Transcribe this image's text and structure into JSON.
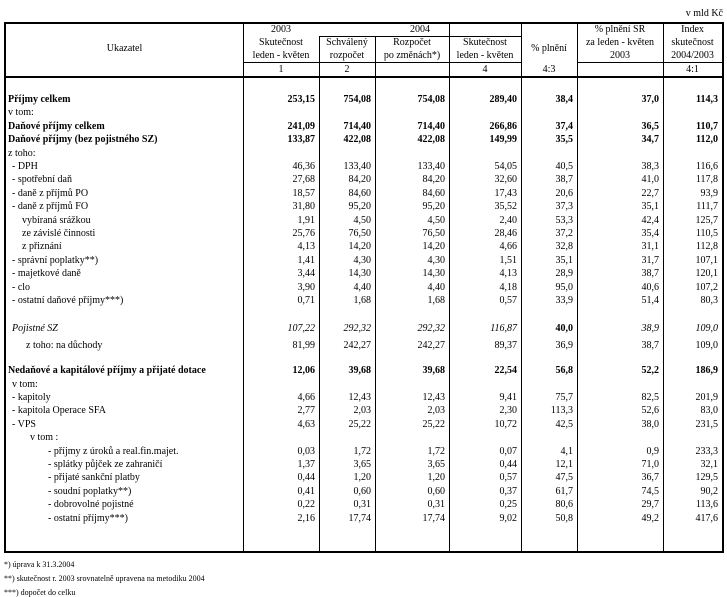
{
  "unit": "v mld Kč",
  "header": {
    "ukazatel": "Ukazatel",
    "year_2003": "2003",
    "year_2004": "2004",
    "col1": [
      "Skutečnost",
      "leden - květen"
    ],
    "col2": [
      "Schválený",
      "rozpočet"
    ],
    "col3": [
      "Rozpočet",
      "po změnách*)"
    ],
    "col4": [
      "Skutečnost",
      "leden - květen"
    ],
    "col5": "% plnění",
    "col6": [
      "% plnění SR",
      "za leden - květen",
      "2003"
    ],
    "col7": [
      "Index",
      "skutečnost",
      "2004/2003"
    ],
    "numbers": [
      "1",
      "2",
      "",
      "4",
      "4:3",
      "",
      "4:1"
    ]
  },
  "rows": [
    {
      "label": "Příjmy celkem",
      "values": [
        "253,15",
        "754,08",
        "754,08",
        "289,40",
        "38,4",
        "37,0",
        "114,3"
      ],
      "style": "bold",
      "level": 0
    },
    {
      "label": "v tom:",
      "values": [
        "",
        "",
        "",
        "",
        "",
        "",
        ""
      ],
      "style": "normal",
      "level": 0
    },
    {
      "label": "Daňové příjmy celkem",
      "values": [
        "241,09",
        "714,40",
        "714,40",
        "266,86",
        "37,4",
        "36,5",
        "110,7"
      ],
      "style": "bold",
      "level": 0
    },
    {
      "label": "Daňové příjmy (bez pojistného SZ)",
      "values": [
        "133,87",
        "422,08",
        "422,08",
        "149,99",
        "35,5",
        "34,7",
        "112,0"
      ],
      "style": "bold",
      "level": 0
    },
    {
      "label": "z toho:",
      "values": [
        "",
        "",
        "",
        "",
        "",
        "",
        ""
      ],
      "style": "normal",
      "level": 0
    },
    {
      "label": "- DPH",
      "values": [
        "46,36",
        "133,40",
        "133,40",
        "54,05",
        "40,5",
        "38,3",
        "116,6"
      ],
      "style": "normal",
      "level": 1
    },
    {
      "label": "- spotřební daň",
      "values": [
        "27,68",
        "84,20",
        "84,20",
        "32,60",
        "38,7",
        "41,0",
        "117,8"
      ],
      "style": "normal",
      "level": 1
    },
    {
      "label": "- daně z příjmů PO",
      "values": [
        "18,57",
        "84,60",
        "84,60",
        "17,43",
        "20,6",
        "22,7",
        "93,9"
      ],
      "style": "normal",
      "level": 1
    },
    {
      "label": "- daně z příjmů FO",
      "values": [
        "31,80",
        "95,20",
        "95,20",
        "35,52",
        "37,3",
        "35,1",
        "111,7"
      ],
      "style": "normal",
      "level": 1
    },
    {
      "label": "vybíraná srážkou",
      "values": [
        "1,91",
        "4,50",
        "4,50",
        "2,40",
        "53,3",
        "42,4",
        "125,7"
      ],
      "style": "normal",
      "level": 2
    },
    {
      "label": "ze závislé činnosti",
      "values": [
        "25,76",
        "76,50",
        "76,50",
        "28,46",
        "37,2",
        "35,4",
        "110,5"
      ],
      "style": "normal",
      "level": 2
    },
    {
      "label": "z přiznání",
      "values": [
        "4,13",
        "14,20",
        "14,20",
        "4,66",
        "32,8",
        "31,1",
        "112,8"
      ],
      "style": "normal",
      "level": 2
    },
    {
      "label": "- správní poplatky**)",
      "values": [
        "1,41",
        "4,30",
        "4,30",
        "1,51",
        "35,1",
        "31,7",
        "107,1"
      ],
      "style": "normal",
      "level": 1
    },
    {
      "label": "- majetkové daně",
      "values": [
        "3,44",
        "14,30",
        "14,30",
        "4,13",
        "28,9",
        "38,7",
        "120,1"
      ],
      "style": "normal",
      "level": 1
    },
    {
      "label": "- clo",
      "values": [
        "3,90",
        "4,40",
        "4,40",
        "4,18",
        "95,0",
        "40,6",
        "107,2"
      ],
      "style": "normal",
      "level": 1
    },
    {
      "label": "- ostatní daňové příjmy***)",
      "values": [
        "0,71",
        "1,68",
        "1,68",
        "0,57",
        "33,9",
        "51,4",
        "80,3"
      ],
      "style": "normal",
      "level": 1
    },
    {
      "label": "Pojistné SZ",
      "values": [
        "107,22",
        "292,32",
        "292,32",
        "116,87",
        "40,0",
        "38,9",
        "109,0"
      ],
      "style": "italic",
      "bold_values": [
        4
      ],
      "level": 1
    },
    {
      "label": "z toho: na důchody",
      "values": [
        "81,99",
        "242,27",
        "242,27",
        "89,37",
        "36,9",
        "38,7",
        "109,0"
      ],
      "style": "normal",
      "level": 3
    },
    {
      "label": "Nedaňové a kapitálové příjmy a přijaté dotace",
      "values": [
        "12,06",
        "39,68",
        "39,68",
        "22,54",
        "56,8",
        "52,2",
        "186,9"
      ],
      "style": "bold",
      "level": 0
    },
    {
      "label": "v tom:",
      "values": [
        "",
        "",
        "",
        "",
        "",
        "",
        ""
      ],
      "style": "normal",
      "level": 1
    },
    {
      "label": "- kapitoly",
      "values": [
        "4,66",
        "12,43",
        "12,43",
        "9,41",
        "75,7",
        "82,5",
        "201,9"
      ],
      "style": "normal",
      "level": 1
    },
    {
      "label": "- kapitola Operace SFA",
      "values": [
        "2,77",
        "2,03",
        "2,03",
        "2,30",
        "113,3",
        "52,6",
        "83,0"
      ],
      "style": "normal",
      "level": 1
    },
    {
      "label": "- VPS",
      "values": [
        "4,63",
        "25,22",
        "25,22",
        "10,72",
        "42,5",
        "38,0",
        "231,5"
      ],
      "style": "normal",
      "level": 1
    },
    {
      "label": "v tom :",
      "values": [
        "",
        "",
        "",
        "",
        "",
        "",
        ""
      ],
      "style": "normal",
      "level": 4
    },
    {
      "label": "- příjmy z úroků a real.fin.majet.",
      "values": [
        "0,03",
        "1,72",
        "1,72",
        "0,07",
        "4,1",
        "0,9",
        "233,3"
      ],
      "style": "normal",
      "level": 5
    },
    {
      "label": "- splátky půjček ze zahraničí",
      "values": [
        "1,37",
        "3,65",
        "3,65",
        "0,44",
        "12,1",
        "71,0",
        "32,1"
      ],
      "style": "normal",
      "level": 5
    },
    {
      "label": "- přijaté sankční platby",
      "values": [
        "0,44",
        "1,20",
        "1,20",
        "0,57",
        "47,5",
        "36,7",
        "129,5"
      ],
      "style": "normal",
      "level": 5
    },
    {
      "label": "- soudní poplatky**)",
      "values": [
        "0,41",
        "0,60",
        "0,60",
        "0,37",
        "61,7",
        "74,5",
        "90,2"
      ],
      "style": "normal",
      "level": 5
    },
    {
      "label": "- dobrovolné pojistné",
      "values": [
        "0,22",
        "0,31",
        "0,31",
        "0,25",
        "80,6",
        "29,7",
        "113,6"
      ],
      "style": "normal",
      "level": 5
    },
    {
      "label": "- ostatní příjmy***)",
      "values": [
        "2,16",
        "17,74",
        "17,74",
        "9,02",
        "50,8",
        "49,2",
        "417,6"
      ],
      "style": "normal",
      "level": 5
    }
  ],
  "footnotes": [
    "*) úprava k 31.3.2004",
    "**) skutečnost r. 2003 srovnatelně upravena na metodiku 2004",
    "***) dopočet do celku"
  ]
}
